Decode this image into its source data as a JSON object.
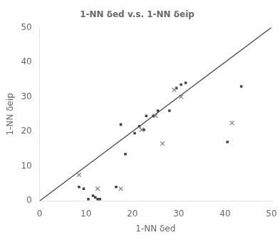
{
  "chart_data": {
    "type": "scatter",
    "title": "1-NN δed v.s. 1-NN δeip",
    "xlabel": "1-NN δed",
    "ylabel": "1-NN δeip",
    "xlim": [
      0,
      50
    ],
    "ylim": [
      0,
      50
    ],
    "xticks": [
      0,
      10,
      20,
      30,
      40,
      50
    ],
    "yticks": [
      0,
      10,
      20,
      30,
      40,
      50
    ],
    "grid": false,
    "series": [
      {
        "type": "line",
        "color": "#444444",
        "line_style": "solid",
        "values": [
          [
            0,
            0
          ],
          [
            50,
            50
          ]
        ]
      },
      {
        "type": "scatter",
        "color": "#444444",
        "marker": "square",
        "values": [
          [
            8.5,
            4.0
          ],
          [
            9.5,
            3.5
          ],
          [
            10.5,
            0.5
          ],
          [
            11.5,
            1.5
          ],
          [
            12.0,
            1.0
          ],
          [
            12.5,
            0.5
          ],
          [
            13.0,
            0.5
          ],
          [
            16.5,
            4.0
          ],
          [
            17.5,
            22.0
          ],
          [
            18.5,
            13.5
          ],
          [
            20.5,
            19.5
          ],
          [
            21.5,
            21.5
          ],
          [
            22.5,
            20.5
          ],
          [
            23.0,
            24.5
          ],
          [
            24.5,
            24.5
          ],
          [
            25.5,
            26.0
          ],
          [
            28.0,
            26.0
          ],
          [
            29.5,
            32.5
          ],
          [
            30.5,
            33.5
          ],
          [
            31.5,
            34.0
          ],
          [
            40.5,
            17.0
          ],
          [
            43.5,
            33.0
          ]
        ]
      },
      {
        "type": "scatter",
        "color": "#888888",
        "marker": "x",
        "values": [
          [
            8.5,
            7.5
          ],
          [
            12.5,
            3.5
          ],
          [
            17.5,
            3.5
          ],
          [
            22.0,
            20.5
          ],
          [
            25.0,
            24.5
          ],
          [
            26.5,
            16.5
          ],
          [
            29.0,
            32.0
          ],
          [
            30.5,
            30.0
          ],
          [
            41.5,
            22.5
          ]
        ]
      }
    ]
  }
}
